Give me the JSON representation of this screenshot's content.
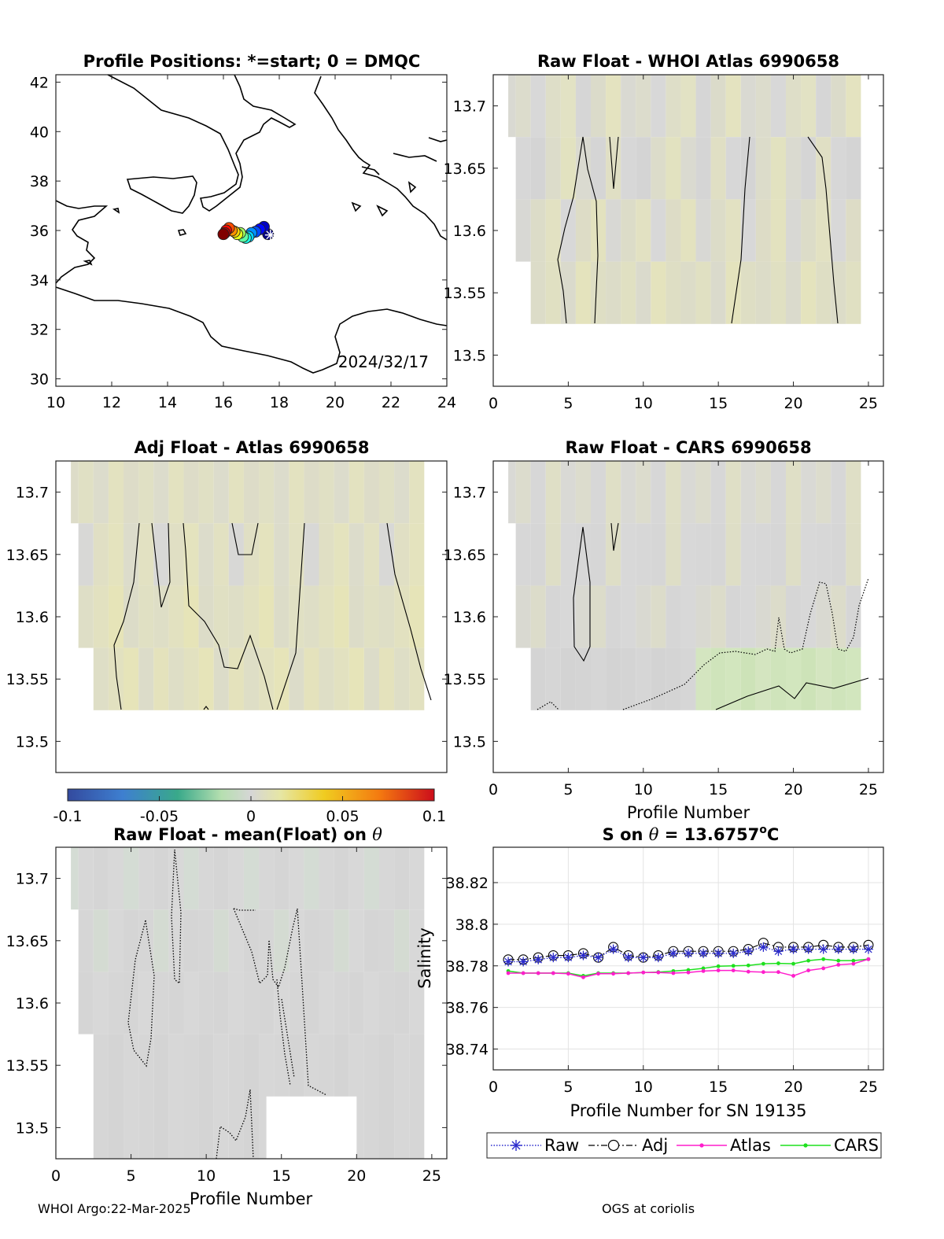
{
  "figure": {
    "footer_left": "WHOI Argo:22-Mar-2025",
    "footer_right": "OGS at coriolis"
  },
  "chart_data": [
    {
      "id": "map",
      "type": "scatter",
      "title": "Profile Positions: *=start; 0 = DMQC",
      "annotation": "2024/32/17",
      "xlim": [
        10,
        24
      ],
      "ylim": [
        29.7,
        42.3
      ],
      "xticks": [
        "10",
        "12",
        "14",
        "16",
        "18",
        "20",
        "22",
        "24"
      ],
      "yticks": [
        "30",
        "32",
        "34",
        "36",
        "38",
        "40",
        "42"
      ],
      "positions": {
        "lon": [
          17.6,
          17.45,
          17.3,
          17.15,
          17.0,
          16.9,
          16.8,
          16.7,
          16.6,
          16.5,
          16.4,
          16.3,
          16.2,
          16.1,
          16.05,
          16.0
        ],
        "lat": [
          35.85,
          36.15,
          36.05,
          35.95,
          35.9,
          35.75,
          35.7,
          35.75,
          35.9,
          35.85,
          35.95,
          36.0,
          36.1,
          36.0,
          35.9,
          35.85
        ]
      },
      "coastline": "Central Mediterranean (Italy, Sicily, Tunisia, Libya, Greece)"
    },
    {
      "id": "raw-atlas",
      "type": "heatmap",
      "title": "Raw Float - WHOI Atlas  6990658",
      "xlim": [
        0,
        26
      ],
      "ylim": [
        13.475,
        13.725
      ],
      "xticks": [
        "0",
        "5",
        "10",
        "15",
        "20",
        "25"
      ],
      "yticks": [
        "13.5",
        "13.55",
        "13.6",
        "13.65",
        "13.7"
      ],
      "xlabel": "",
      "ylabel": ""
    },
    {
      "id": "adj-atlas",
      "type": "heatmap",
      "title": "Adj Float - Atlas  6990658",
      "xlim": [
        0,
        26
      ],
      "ylim": [
        13.475,
        13.725
      ],
      "xticks": [],
      "yticks": [
        "13.5",
        "13.55",
        "13.6",
        "13.65",
        "13.7"
      ],
      "colorbar": {
        "min": -0.1,
        "max": 0.1,
        "ticks": [
          "-0.1",
          "-0.05",
          "0",
          "0.05",
          "0.1"
        ]
      }
    },
    {
      "id": "raw-cars",
      "type": "heatmap",
      "title": "Raw Float - CARS  6990658",
      "xlim": [
        0,
        26
      ],
      "ylim": [
        13.475,
        13.725
      ],
      "xticks": [
        "0",
        "5",
        "10",
        "15",
        "20",
        "25"
      ],
      "yticks": [
        "13.5",
        "13.55",
        "13.6",
        "13.65",
        "13.7"
      ],
      "xlabel": "Profile Number"
    },
    {
      "id": "raw-mean",
      "type": "heatmap",
      "title_prefix": "Raw Float - mean(Float) on ",
      "title_symbol": "θ",
      "xlim": [
        0,
        26
      ],
      "ylim": [
        13.475,
        13.725
      ],
      "xticks": [
        "0",
        "5",
        "10",
        "15",
        "20",
        "25"
      ],
      "yticks": [
        "13.5",
        "13.55",
        "13.6",
        "13.65",
        "13.7"
      ],
      "xlabel": "Profile Number"
    },
    {
      "id": "salinity",
      "type": "line",
      "title_prefix": "S on ",
      "title_symbol": "θ",
      "title_value": " = 13.6757",
      "title_sup": "o",
      "title_unit": "C",
      "xlabel": "Profile Number for SN 19135",
      "ylabel": "Salinity",
      "xlim": [
        0,
        26
      ],
      "ylim": [
        38.73,
        38.837
      ],
      "grid": true,
      "xticks": [
        "0",
        "5",
        "10",
        "15",
        "20",
        "25"
      ],
      "yticks": [
        "38.74",
        "38.76",
        "38.78",
        "38.8",
        "38.82"
      ],
      "legend_position": "below",
      "x": [
        1,
        2,
        3,
        4,
        5,
        6,
        7,
        8,
        9,
        10,
        11,
        12,
        13,
        14,
        15,
        16,
        17,
        18,
        19,
        20,
        21,
        22,
        23,
        24,
        25
      ],
      "series": [
        {
          "name": "Raw",
          "color": "#2a2acc",
          "values": [
            38.782,
            38.782,
            38.783,
            38.784,
            38.784,
            38.785,
            38.784,
            38.788,
            38.784,
            38.784,
            38.784,
            38.786,
            38.786,
            38.786,
            38.786,
            38.786,
            38.787,
            38.789,
            38.787,
            38.788,
            38.788,
            38.788,
            38.788,
            38.788,
            38.788
          ]
        },
        {
          "name": "Adj",
          "color": "#000000",
          "values": [
            38.783,
            38.783,
            38.784,
            38.785,
            38.785,
            38.786,
            38.784,
            38.789,
            38.785,
            38.784,
            38.785,
            38.787,
            38.787,
            38.787,
            38.787,
            38.787,
            38.788,
            38.791,
            38.789,
            38.789,
            38.789,
            38.79,
            38.789,
            38.789,
            38.79
          ]
        },
        {
          "name": "Atlas",
          "color": "#ff1ecc",
          "values": [
            38.7765,
            38.7765,
            38.7765,
            38.7765,
            38.7762,
            38.7745,
            38.7762,
            38.7762,
            38.7765,
            38.7768,
            38.7768,
            38.7765,
            38.7768,
            38.7775,
            38.7778,
            38.7778,
            38.7772,
            38.777,
            38.777,
            38.7752,
            38.7778,
            38.7788,
            38.7805,
            38.781,
            38.7832
          ]
        },
        {
          "name": "CARS",
          "color": "#1ee01e",
          "values": [
            38.7775,
            38.7765,
            38.7765,
            38.7765,
            38.7765,
            38.7752,
            38.7765,
            38.7765,
            38.7765,
            38.7768,
            38.777,
            38.7775,
            38.778,
            38.7788,
            38.7798,
            38.78,
            38.7802,
            38.781,
            38.7812,
            38.781,
            38.7825,
            38.7832,
            38.7825,
            38.7825,
            38.7832
          ]
        }
      ]
    }
  ]
}
